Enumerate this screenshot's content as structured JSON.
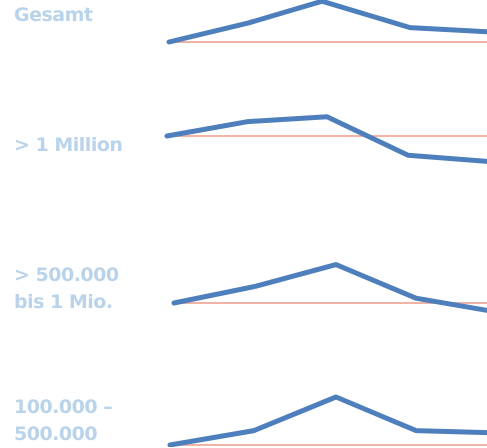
{
  "chart_data": {
    "type": "line",
    "colors": {
      "series": "#4e7fbd",
      "baseline": "#f2b3a7",
      "label": "#b9d3ea"
    },
    "x": [
      1,
      2,
      3,
      4,
      5
    ],
    "panels": [
      {
        "label": [
          "Gesamt"
        ],
        "values": [
          100,
          108,
          117,
          106,
          104
        ]
      },
      {
        "label": [
          "> 1 Million"
        ],
        "values": [
          100,
          106,
          108,
          92,
          89
        ]
      },
      {
        "label": [
          "> 500.000",
          "bis 1 Mio."
        ],
        "values": [
          100,
          107,
          116,
          102,
          96
        ]
      },
      {
        "label": [
          "100.000 –",
          "500.000"
        ],
        "values": [
          100,
          106,
          120,
          106,
          105
        ]
      }
    ]
  }
}
